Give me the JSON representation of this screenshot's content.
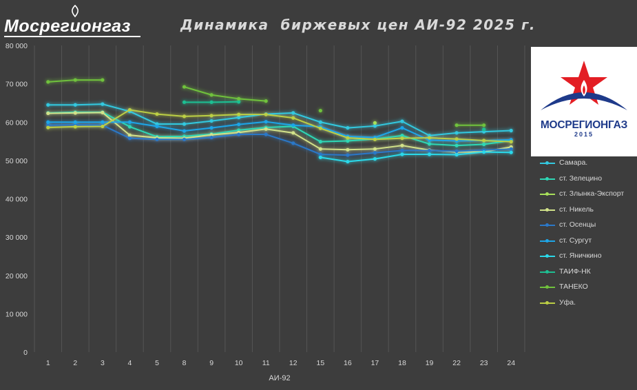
{
  "header": {
    "brand": "Мосрегионгаз",
    "title": "Динамика  биржевых цен АИ-92 2025 г."
  },
  "logo": {
    "name": "МОСРЕГИОНГАЗ",
    "year": "2015",
    "icon": "star-flame-logo"
  },
  "chart_data": {
    "type": "line",
    "title": "Динамика  биржевых цен АИ-92 2025 г.",
    "xlabel": "АИ-92",
    "ylabel": "",
    "ylim": [
      0,
      80000
    ],
    "yticks": [
      "0",
      "10 000",
      "20 000",
      "30 000",
      "40 000",
      "50 000",
      "60 000",
      "70 000",
      "80 000"
    ],
    "grid": "vertical",
    "legend_position": "right",
    "categories": [
      "1",
      "2",
      "3",
      "4",
      "5",
      "8",
      "9",
      "10",
      "11",
      "12",
      "15",
      "16",
      "17",
      "18",
      "19",
      "22",
      "23",
      "24"
    ],
    "series": [
      {
        "name": "Самара.",
        "color": "#33c9e0",
        "values": [
          64500,
          64500,
          64700,
          62800,
          59500,
          59500,
          60300,
          61200,
          62100,
          62400,
          60000,
          58500,
          59000,
          60200,
          56500,
          57200,
          57500,
          57800
        ]
      },
      {
        "name": "ст. Зелецино",
        "color": "#2ed8b6",
        "values": [
          62400,
          62600,
          62600,
          58800,
          56200,
          56300,
          56900,
          57900,
          58600,
          58900,
          54900,
          55100,
          55600,
          56500,
          54300,
          53900,
          54200,
          55200
        ]
      },
      {
        "name": "ст. Злынка-Экспорт",
        "color": "#a8e05a",
        "values": [
          null,
          null,
          null,
          null,
          null,
          null,
          null,
          null,
          null,
          null,
          null,
          null,
          59800,
          null,
          null,
          null,
          null,
          null
        ]
      },
      {
        "name": "ст. Никель",
        "color": "#d2e28a",
        "values": [
          62300,
          62400,
          62500,
          56600,
          55900,
          55800,
          56700,
          57300,
          58200,
          57200,
          53000,
          52800,
          53000,
          53900,
          52700,
          52200,
          52300,
          53500
        ]
      },
      {
        "name": "ст. Осенцы",
        "color": "#2b78c8",
        "values": [
          59200,
          59300,
          59200,
          55800,
          55500,
          55500,
          56000,
          56800,
          56800,
          54500,
          51600,
          51400,
          52000,
          52600,
          52600,
          52400,
          52700,
          53000
        ]
      },
      {
        "name": "ст. Сургут",
        "color": "#1ea6e8",
        "values": [
          60000,
          60000,
          60000,
          60000,
          58900,
          57700,
          58500,
          59400,
          60100,
          59200,
          58800,
          56300,
          56000,
          58500,
          55300,
          55100,
          55200,
          55400
        ]
      },
      {
        "name": "ст. Яничкино",
        "color": "#2bd9ea",
        "values": [
          null,
          null,
          null,
          null,
          null,
          null,
          null,
          null,
          null,
          null,
          50800,
          49700,
          50400,
          51600,
          51600,
          51500,
          52200,
          52100
        ]
      },
      {
        "name": "ТАИФ-НК",
        "color": "#1ebf93",
        "values": [
          null,
          null,
          null,
          null,
          null,
          65200,
          65200,
          65300,
          null,
          null,
          null,
          null,
          null,
          null,
          null,
          null,
          58100,
          null
        ]
      },
      {
        "name": "ТАНЕКО",
        "color": "#70c23c",
        "values": [
          70500,
          71000,
          71000,
          null,
          null,
          69200,
          67100,
          66100,
          65500,
          null,
          63000,
          null,
          null,
          null,
          null,
          59200,
          59200,
          null
        ]
      },
      {
        "name": "Уфа.",
        "color": "#bccf45",
        "values": [
          58600,
          58800,
          58900,
          63200,
          62100,
          61500,
          61700,
          62000,
          62000,
          61100,
          58400,
          55900,
          55500,
          55800,
          55900,
          55600,
          55200,
          54900
        ]
      }
    ]
  }
}
